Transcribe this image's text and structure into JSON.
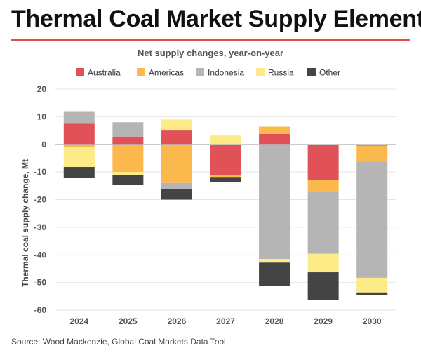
{
  "header": {
    "title": "Thermal Coal Market Supply Elements"
  },
  "footer": {
    "source": "Source: Wood Mackenzie, Global Coal Markets Data Tool"
  },
  "chart_data": {
    "type": "bar",
    "stacked": true,
    "title": "Net supply changes, year-on-year",
    "xlabel": "",
    "ylabel": "Thermal coal supply change, Mt",
    "ylim": [
      -60,
      20
    ],
    "yticks": [
      20,
      10,
      0,
      -10,
      -20,
      -30,
      -40,
      -50,
      -60
    ],
    "grid": true,
    "legend_position": "top",
    "categories": [
      "2024",
      "2025",
      "2026",
      "2027",
      "2028",
      "2029",
      "2030"
    ],
    "series": [
      {
        "name": "Australia",
        "color": "#e05158",
        "values": [
          7.5,
          2.8,
          5.0,
          -11.0,
          3.8,
          -12.8,
          -0.5
        ]
      },
      {
        "name": "Americas",
        "color": "#fbb84c",
        "values": [
          -1.0,
          -10.0,
          -14.0,
          -0.8,
          2.6,
          -4.3,
          -5.8
        ]
      },
      {
        "name": "Indonesia",
        "color": "#b5b5b5",
        "values": [
          4.5,
          5.2,
          -2.2,
          0,
          -41.5,
          -22.5,
          -42.0
        ]
      },
      {
        "name": "Russia",
        "color": "#fdeb87",
        "values": [
          -7.2,
          -1.2,
          4.0,
          3.2,
          -1.3,
          -6.7,
          -5.3
        ]
      },
      {
        "name": "Other",
        "color": "#444444",
        "values": [
          -3.8,
          -3.5,
          -3.8,
          -1.8,
          -8.5,
          -10.0,
          -1.0
        ]
      }
    ]
  }
}
